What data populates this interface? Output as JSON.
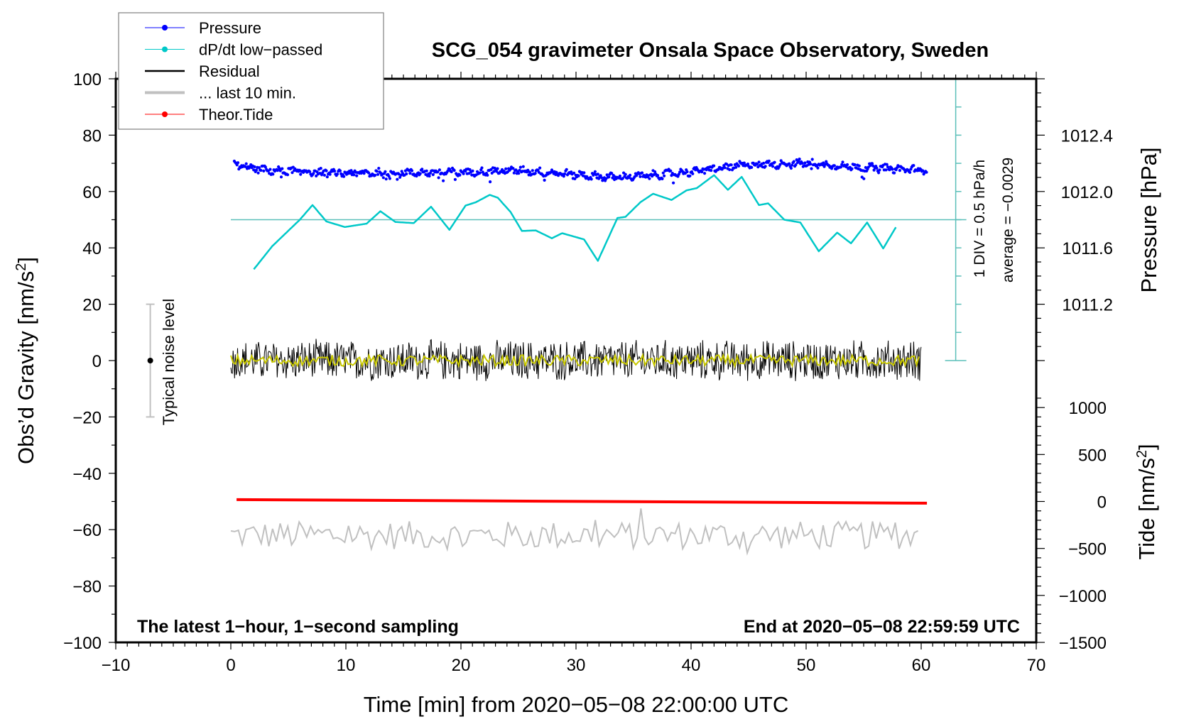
{
  "chart_data": {
    "type": "line",
    "title": "SCG_054 gravimeter Onsala Space Observatory, Sweden",
    "xlabel": "Time [min] from 2020−05−08 22:00:00 UTC",
    "ylabel": "Obs’d Gravity [nm/s",
    "ylabel_sup": "2",
    "ylabel_end": "]",
    "y2label_pressure": "Pressure [hPa]",
    "y2label_tide": "Tide [nm/s",
    "y2label_tide_sup": "2",
    "y2label_tide_end": "]",
    "xlim": [
      -10,
      70
    ],
    "ylim": [
      -100,
      100
    ],
    "grid": false,
    "legend_position": "top-left",
    "x_ticks": [
      "−10",
      "0",
      "10",
      "20",
      "30",
      "40",
      "50",
      "60",
      "70"
    ],
    "x_tick_values": [
      -10,
      0,
      10,
      20,
      30,
      40,
      50,
      60,
      70
    ],
    "y_ticks": [
      "100",
      "80",
      "60",
      "40",
      "20",
      "0",
      "−20",
      "−40",
      "−60",
      "−80",
      "−100"
    ],
    "y_tick_values": [
      100,
      80,
      60,
      40,
      20,
      0,
      -20,
      -40,
      -60,
      -80,
      -100
    ],
    "pressure_axis": {
      "ticks": [
        "1012.4",
        "1012.0",
        "1011.6",
        "1011.2"
      ],
      "tick_values": [
        1012.4,
        1012.0,
        1011.6,
        1011.2
      ],
      "range": [
        1010.8,
        1012.8
      ]
    },
    "tide_axis": {
      "ticks": [
        "1000",
        "500",
        "0",
        "−500",
        "−1000",
        "−1500"
      ],
      "tick_values": [
        1000,
        500,
        0,
        -500,
        -1000,
        -1500
      ],
      "range": [
        -1500,
        1100
      ]
    },
    "legend": [
      {
        "label": "Pressure",
        "color": "#0000ff",
        "style": "line-dot"
      },
      {
        "label": "dP/dt low−passed",
        "color": "#00c8c8",
        "style": "line-dot"
      },
      {
        "label": "Residual",
        "color": "#000000",
        "style": "line"
      },
      {
        "label": "... last 10 min.",
        "color": "#c0c0c0",
        "style": "thick-line"
      },
      {
        "label": "Theor.Tide",
        "color": "#ff0000",
        "style": "line-dot"
      }
    ],
    "annotations": {
      "left_bottom": "The latest 1−hour, 1−second sampling",
      "right_bottom": "End at 2020−05−08 22:59:59 UTC",
      "div_scale": "1 DIV = 0.5 hPa/h",
      "average": "average = −0.0029",
      "noise_label": "Typical noise level"
    },
    "noise_level": {
      "x": -7,
      "range": [
        -20,
        20
      ]
    },
    "dpdt_scale": {
      "x": 63,
      "zero_level_gravity": 50,
      "hpa_per_h_per_div": 0.5,
      "div_gravity": 10
    },
    "series": {
      "pressure_hpa": {
        "t": [
          0.3,
          3,
          10,
          20,
          25,
          30,
          33,
          36,
          40,
          45,
          50,
          55,
          60.5
        ],
        "values": [
          1012.19,
          1012.15,
          1012.13,
          1012.136,
          1012.15,
          1012.12,
          1012.1,
          1012.11,
          1012.14,
          1012.19,
          1012.2,
          1012.17,
          1012.15
        ]
      },
      "dpdt_hpa_per_h": {
        "t": [
          2.0,
          3.6,
          6.0,
          7.1,
          8.3,
          9.9,
          11.8,
          13.0,
          14.3,
          15.9,
          17.4,
          19.0,
          20.4,
          21.3,
          22.5,
          23.2,
          24.3,
          25.3,
          26.5,
          27.9,
          28.8,
          30.7,
          31.9,
          33.6,
          34.3,
          35.6,
          36.7,
          38.3,
          39.6,
          40.5,
          42.0,
          43.2,
          44.4,
          45.9,
          46.7,
          48.1,
          49.5,
          51.1,
          52.7,
          53.9,
          55.3,
          56.7,
          57.9
        ],
        "values": [
          -0.88,
          -0.47,
          0.0,
          0.26,
          -0.03,
          -0.13,
          -0.07,
          0.15,
          -0.04,
          -0.06,
          0.23,
          -0.18,
          0.25,
          0.31,
          0.44,
          0.39,
          0.14,
          -0.2,
          -0.19,
          -0.33,
          -0.24,
          -0.35,
          -0.73,
          0.03,
          0.05,
          0.31,
          0.46,
          0.35,
          0.52,
          0.56,
          0.79,
          0.53,
          0.76,
          0.26,
          0.29,
          0.0,
          -0.05,
          -0.56,
          -0.23,
          -0.42,
          -0.05,
          -0.51,
          -0.1
        ]
      },
      "residual_nm_s2": {
        "t_range": [
          0,
          60
        ],
        "mean": 0,
        "amplitude": 8
      },
      "last10min_nm_s2": {
        "t_range": [
          0,
          60
        ],
        "mean": -62,
        "amplitude": 5
      },
      "tide_nm_s2": {
        "t": [
          0.5,
          60.5
        ],
        "values": [
          20,
          -18
        ]
      }
    }
  }
}
